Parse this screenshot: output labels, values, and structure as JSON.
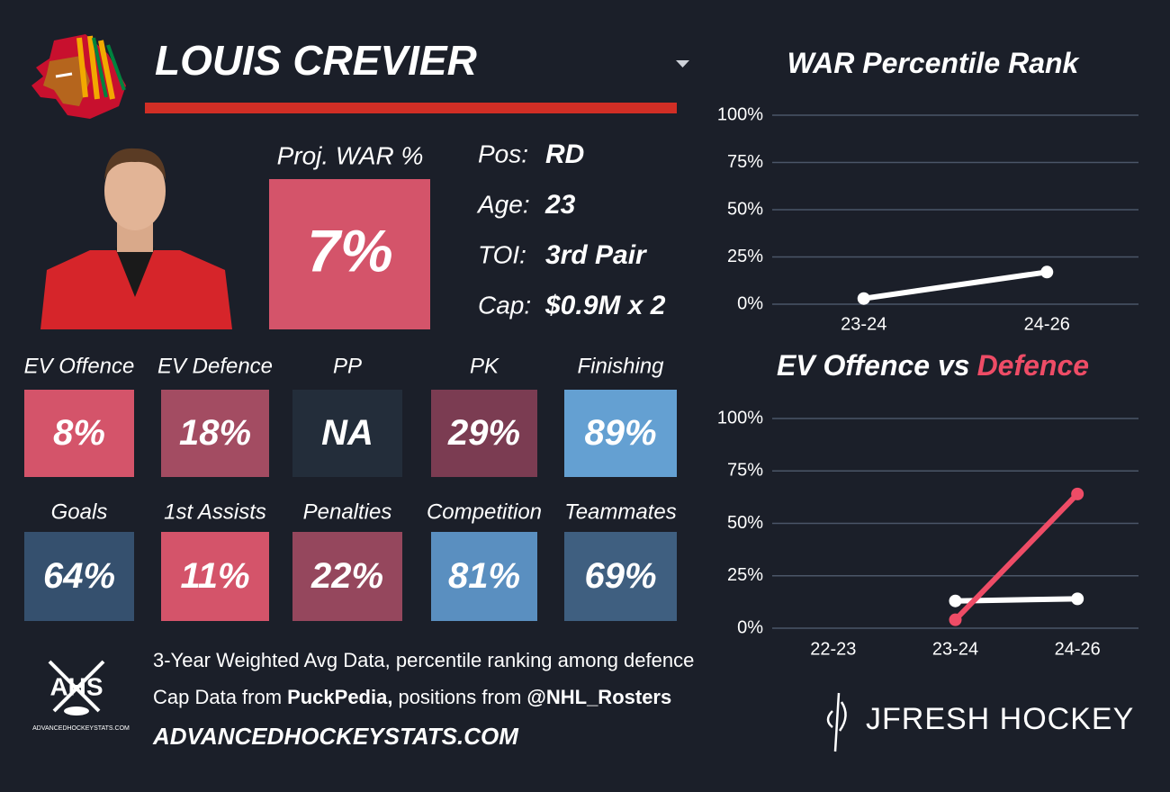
{
  "header": {
    "name": "LOUIS CREVIER"
  },
  "projection": {
    "label": "Proj. WAR %",
    "value": "7%",
    "color": "#d4546a"
  },
  "info": [
    {
      "label": "Pos:",
      "value": "RD"
    },
    {
      "label": "Age:",
      "value": "23"
    },
    {
      "label": "TOI:",
      "value": "3rd Pair"
    },
    {
      "label": "Cap:",
      "value": "$0.9M x 2"
    }
  ],
  "tiles": [
    [
      {
        "label": "EV Offence",
        "value": "8%",
        "color": "#d4546a"
      },
      {
        "label": "EV Defence",
        "value": "18%",
        "color": "#a34c62"
      },
      {
        "label": "PP",
        "value": "NA",
        "color": "#232d3a"
      },
      {
        "label": "PK",
        "value": "29%",
        "color": "#7b3c52"
      },
      {
        "label": "Finishing",
        "value": "89%",
        "color": "#64a0d2"
      }
    ],
    [
      {
        "label": "Goals",
        "value": "64%",
        "color": "#35506e"
      },
      {
        "label": "1st Assists",
        "value": "11%",
        "color": "#d4546a"
      },
      {
        "label": "Penalties",
        "value": "22%",
        "color": "#95475d"
      },
      {
        "label": "Competition",
        "value": "81%",
        "color": "#5a8fc0"
      },
      {
        "label": "Teammates",
        "value": "69%",
        "color": "#3f5f80"
      }
    ]
  ],
  "footer": {
    "note": "3-Year Weighted Avg Data, percentile ranking among defence",
    "credits": [
      "Cap Data from",
      "PuckPedia,",
      "positions from",
      "@NHL_Rosters"
    ],
    "site": "ADVANCEDHOCKEYSTATS.COM",
    "logo": "AHS",
    "logo_caption": "ADVANCEDHOCKEYSTATS.COM",
    "brand": "JFRESH HOCKEY"
  },
  "chart_data": [
    {
      "type": "line",
      "title": "WAR Percentile Rank",
      "categories": [
        "23-24",
        "24-26"
      ],
      "series": [
        {
          "color": "#ffffff",
          "values": [
            3,
            17
          ]
        }
      ],
      "ylim": [
        0,
        100
      ],
      "yticks": [
        {
          "value": 0,
          "label": "0%"
        },
        {
          "value": 25,
          "label": "25%"
        },
        {
          "value": 50,
          "label": "50%"
        },
        {
          "value": 75,
          "label": "75%"
        },
        {
          "value": 100,
          "label": "100%"
        }
      ],
      "grid": true
    },
    {
      "type": "line",
      "title": "EV Offence vs",
      "title_highlight": "Defence",
      "title_highlight_color": "#ee4c66",
      "categories": [
        "22-23",
        "23-24",
        "24-26"
      ],
      "series": [
        {
          "color": "#ffffff",
          "values": [
            null,
            13,
            14
          ]
        },
        {
          "color": "#ee4c66",
          "values": [
            null,
            4,
            64
          ]
        }
      ],
      "ylim": [
        0,
        100
      ],
      "yticks": [
        {
          "value": 0,
          "label": "0%"
        },
        {
          "value": 25,
          "label": "25%"
        },
        {
          "value": 50,
          "label": "50%"
        },
        {
          "value": 75,
          "label": "75%"
        },
        {
          "value": 100,
          "label": "100%"
        }
      ],
      "grid": true
    }
  ]
}
